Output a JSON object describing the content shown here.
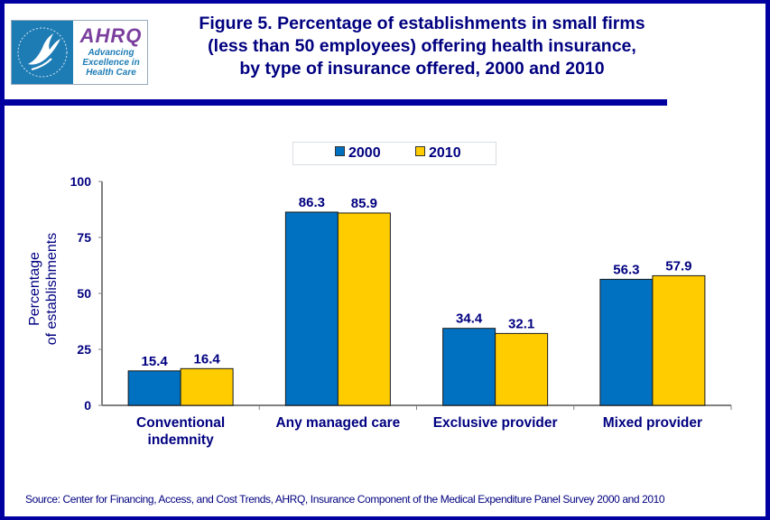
{
  "header": {
    "logo": {
      "left_alt": "HHS eagle seal",
      "brand": "AHRQ",
      "tagline_lines": [
        "Advancing",
        "Excellence in",
        "Health Care"
      ]
    },
    "title_lines": [
      "Figure 5. Percentage of establishments in small firms",
      "(less than 50 employees) offering health insurance,",
      "by type of insurance offered, 2000 and 2010"
    ]
  },
  "colors": {
    "frame": "#0000a0",
    "text": "#000080",
    "series_2000": "#0070c0",
    "series_2010": "#ffcc00"
  },
  "chart_data": {
    "type": "bar",
    "title": "Figure 5. Percentage of establishments in small firms (less than 50 employees) offering health insurance, by type of insurance offered, 2000 and 2010",
    "categories": [
      "Conventional indemnity",
      "Any managed care",
      "Exclusive provider",
      "Mixed provider"
    ],
    "category_label_lines": [
      [
        "Conventional",
        "indemnity"
      ],
      [
        "Any managed care"
      ],
      [
        "Exclusive provider"
      ],
      [
        "Mixed provider"
      ]
    ],
    "series": [
      {
        "name": "2000",
        "color": "#0070c0",
        "values": [
          15.4,
          86.3,
          34.4,
          56.3
        ]
      },
      {
        "name": "2010",
        "color": "#ffcc00",
        "values": [
          16.4,
          85.9,
          32.1,
          57.9
        ]
      }
    ],
    "xlabel": "",
    "ylabel_lines": [
      "Percentage",
      "of establishments"
    ],
    "ylim": [
      0,
      100
    ],
    "yticks": [
      0,
      25,
      50,
      75,
      100
    ],
    "grid": false,
    "legend": {
      "position": "top-center",
      "entries": [
        "2000",
        "2010"
      ]
    },
    "data_labels": true
  },
  "footer": {
    "source": "Source: Center for Financing, Access, and Cost Trends, AHRQ, Insurance Component of the Medical Expenditure Panel Survey 2000 and 2010"
  }
}
